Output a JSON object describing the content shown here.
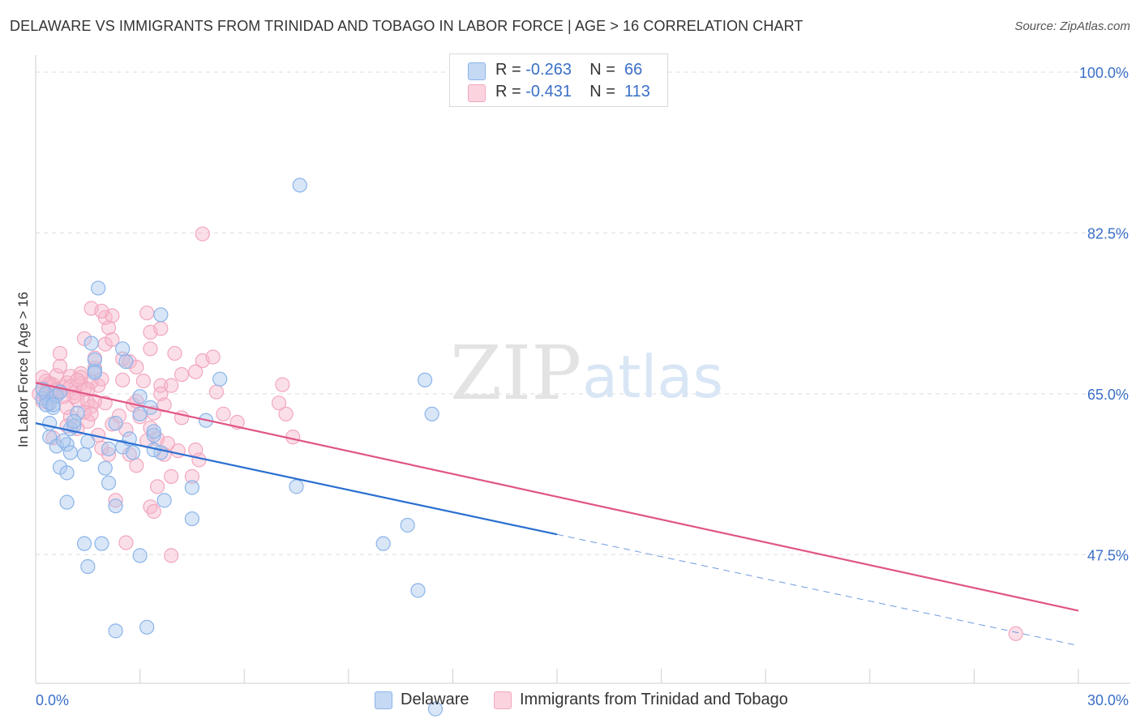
{
  "title": "DELAWARE VS IMMIGRANTS FROM TRINIDAD AND TOBAGO IN LABOR FORCE | AGE > 16 CORRELATION CHART",
  "source": "Source: ZipAtlas.com",
  "watermark": {
    "zip": "ZIP",
    "atlas": "atlas"
  },
  "legend_top": [
    {
      "r_label": "R =",
      "r_value": "-0.263",
      "n_label": "N =",
      "n_value": "66"
    },
    {
      "r_label": "R =",
      "r_value": "-0.431",
      "n_label": "N =",
      "n_value": "113"
    }
  ],
  "legend_bottom": [
    "Delaware",
    "Immigrants from Trinidad and Tobago"
  ],
  "chart_data": {
    "type": "scatter",
    "title": "DELAWARE VS IMMIGRANTS FROM TRINIDAD AND TOBAGO IN LABOR FORCE | AGE > 16 CORRELATION CHART",
    "xlabel": "",
    "ylabel": "In Labor Force | Age > 16",
    "xlim": [
      0,
      30
    ],
    "ylim": [
      33.5,
      101.5
    ],
    "x_tick_labels": [
      "0.0%",
      "30.0%"
    ],
    "y_ticks": [
      47.5,
      65.0,
      82.5,
      100.0
    ],
    "y_tick_labels": [
      "47.5%",
      "65.0%",
      "82.5%",
      "100.0%"
    ],
    "grid": true,
    "legend_position": "top-center",
    "series": [
      {
        "name": "Delaware",
        "color": "#8ab4ea",
        "line_color": "#2a6fd1",
        "stats": {
          "R": -0.263,
          "N": 66
        },
        "trend": {
          "x0": 0,
          "y0": 61.8,
          "x1": 15,
          "y1": 49.7,
          "x_dash_end": 30,
          "y_dash_end": 37.6
        },
        "points": [
          [
            0.2,
            64.5
          ],
          [
            0.3,
            65.0
          ],
          [
            0.4,
            64.0
          ],
          [
            0.5,
            63.5
          ],
          [
            0.2,
            65.5
          ],
          [
            0.6,
            64.8
          ],
          [
            0.3,
            63.8
          ],
          [
            0.7,
            65.2
          ],
          [
            0.4,
            60.3
          ],
          [
            0.6,
            59.3
          ],
          [
            0.9,
            59.5
          ],
          [
            0.8,
            59.9
          ],
          [
            1.0,
            61.2
          ],
          [
            1.1,
            61.5
          ],
          [
            1.5,
            59.8
          ],
          [
            1.4,
            58.4
          ],
          [
            1.0,
            58.6
          ],
          [
            0.7,
            57.0
          ],
          [
            0.9,
            56.4
          ],
          [
            0.9,
            53.2
          ],
          [
            1.2,
            62.9
          ],
          [
            1.1,
            62.0
          ],
          [
            0.4,
            61.8
          ],
          [
            0.5,
            63.8
          ],
          [
            1.6,
            70.5
          ],
          [
            1.8,
            76.5
          ],
          [
            2.5,
            69.9
          ],
          [
            2.6,
            68.5
          ],
          [
            1.7,
            67.5
          ],
          [
            1.7,
            68.7
          ],
          [
            1.7,
            67.3
          ],
          [
            2.1,
            59.0
          ],
          [
            2.5,
            59.2
          ],
          [
            2.8,
            58.6
          ],
          [
            2.3,
            61.8
          ],
          [
            3.3,
            63.5
          ],
          [
            2.7,
            60.1
          ],
          [
            2.0,
            56.9
          ],
          [
            2.1,
            55.3
          ],
          [
            2.3,
            52.8
          ],
          [
            1.4,
            48.7
          ],
          [
            1.9,
            48.7
          ],
          [
            1.5,
            46.2
          ],
          [
            3.0,
            47.4
          ],
          [
            2.3,
            39.2
          ],
          [
            3.2,
            39.6
          ],
          [
            3.6,
            73.6
          ],
          [
            3.4,
            60.5
          ],
          [
            3.6,
            58.6
          ],
          [
            3.4,
            60.9
          ],
          [
            3.4,
            58.9
          ],
          [
            3.7,
            53.4
          ],
          [
            4.5,
            54.8
          ],
          [
            4.5,
            51.4
          ],
          [
            3.0,
            64.7
          ],
          [
            3.0,
            62.8
          ],
          [
            4.9,
            62.1
          ],
          [
            5.3,
            66.6
          ],
          [
            7.6,
            87.7
          ],
          [
            7.5,
            54.9
          ],
          [
            11.4,
            62.8
          ],
          [
            10.7,
            50.7
          ],
          [
            10.0,
            48.7
          ],
          [
            11.2,
            66.5
          ],
          [
            11.0,
            43.6
          ],
          [
            11.5,
            30.7
          ]
        ]
      },
      {
        "name": "Immigrants from Trinidad and Tobago",
        "color": "#f2a7be",
        "line_color": "#e05585",
        "stats": {
          "R": -0.431,
          "N": 113
        },
        "trend": {
          "x0": 0,
          "y0": 66.2,
          "x1": 30,
          "y1": 41.4
        },
        "points": [
          [
            0.1,
            65.0
          ],
          [
            0.2,
            65.6
          ],
          [
            0.3,
            64.5
          ],
          [
            0.4,
            65.8
          ],
          [
            0.2,
            64.2
          ],
          [
            0.5,
            66.0
          ],
          [
            0.6,
            64.8
          ],
          [
            0.3,
            66.4
          ],
          [
            0.7,
            65.3
          ],
          [
            0.4,
            63.9
          ],
          [
            0.8,
            65.7
          ],
          [
            0.5,
            64.6
          ],
          [
            0.6,
            67.0
          ],
          [
            0.9,
            66.2
          ],
          [
            0.2,
            66.8
          ],
          [
            0.7,
            68.0
          ],
          [
            1.0,
            66.9
          ],
          [
            1.1,
            65.1
          ],
          [
            1.2,
            64.3
          ],
          [
            1.3,
            66.1
          ],
          [
            1.4,
            65.5
          ],
          [
            1.5,
            64.1
          ],
          [
            1.0,
            62.5
          ],
          [
            1.2,
            61.2
          ],
          [
            0.9,
            63.5
          ],
          [
            1.6,
            66.3
          ],
          [
            1.7,
            67.8
          ],
          [
            1.8,
            65.9
          ],
          [
            1.9,
            66.6
          ],
          [
            2.0,
            64.0
          ],
          [
            1.6,
            63.6
          ],
          [
            1.5,
            62.0
          ],
          [
            1.8,
            60.5
          ],
          [
            2.1,
            58.4
          ],
          [
            2.2,
            61.7
          ],
          [
            1.9,
            59.1
          ],
          [
            0.7,
            69.4
          ],
          [
            1.3,
            67.2
          ],
          [
            1.7,
            68.9
          ],
          [
            2.0,
            70.4
          ],
          [
            2.1,
            72.2
          ],
          [
            2.2,
            70.9
          ],
          [
            2.0,
            73.3
          ],
          [
            2.2,
            73.5
          ],
          [
            2.5,
            68.8
          ],
          [
            2.5,
            66.5
          ],
          [
            2.7,
            68.5
          ],
          [
            2.8,
            63.8
          ],
          [
            2.9,
            64.2
          ],
          [
            3.0,
            62.5
          ],
          [
            3.2,
            59.9
          ],
          [
            3.3,
            61.3
          ],
          [
            3.4,
            62.9
          ],
          [
            3.5,
            60.1
          ],
          [
            3.2,
            73.8
          ],
          [
            3.3,
            71.7
          ],
          [
            3.3,
            69.9
          ],
          [
            3.6,
            72.1
          ],
          [
            3.6,
            65.9
          ],
          [
            3.6,
            65.0
          ],
          [
            3.7,
            63.8
          ],
          [
            3.9,
            65.9
          ],
          [
            4.0,
            69.4
          ],
          [
            4.2,
            67.1
          ],
          [
            3.8,
            59.6
          ],
          [
            3.7,
            58.4
          ],
          [
            3.9,
            56.0
          ],
          [
            4.1,
            58.8
          ],
          [
            3.5,
            54.9
          ],
          [
            3.3,
            52.7
          ],
          [
            3.4,
            52.2
          ],
          [
            3.9,
            47.4
          ],
          [
            4.2,
            62.4
          ],
          [
            4.6,
            67.4
          ],
          [
            4.8,
            68.6
          ],
          [
            5.1,
            69.0
          ],
          [
            5.2,
            65.2
          ],
          [
            5.4,
            62.8
          ],
          [
            5.8,
            61.9
          ],
          [
            4.8,
            82.4
          ],
          [
            4.5,
            56.0
          ],
          [
            4.6,
            58.9
          ],
          [
            4.7,
            57.8
          ],
          [
            2.3,
            53.4
          ],
          [
            2.6,
            48.8
          ],
          [
            2.7,
            58.4
          ],
          [
            2.9,
            67.9
          ],
          [
            3.1,
            66.4
          ],
          [
            1.4,
            71.0
          ],
          [
            1.6,
            74.3
          ],
          [
            1.9,
            74.0
          ],
          [
            0.5,
            60.2
          ],
          [
            0.9,
            61.5
          ],
          [
            1.1,
            64.7
          ],
          [
            1.3,
            66.8
          ],
          [
            1.4,
            63.0
          ],
          [
            0.3,
            65.1
          ],
          [
            0.4,
            66.1
          ],
          [
            0.6,
            65.4
          ],
          [
            0.8,
            64.7
          ],
          [
            1.0,
            65.8
          ],
          [
            1.2,
            66.5
          ],
          [
            7.1,
            66.0
          ],
          [
            7.2,
            62.8
          ],
          [
            7.0,
            64.0
          ],
          [
            7.4,
            60.3
          ],
          [
            2.4,
            62.6
          ],
          [
            2.6,
            61.1
          ],
          [
            2.9,
            57.2
          ],
          [
            1.5,
            65.5
          ],
          [
            1.6,
            62.8
          ],
          [
            1.7,
            64.2
          ],
          [
            28.2,
            38.9
          ]
        ]
      }
    ]
  }
}
